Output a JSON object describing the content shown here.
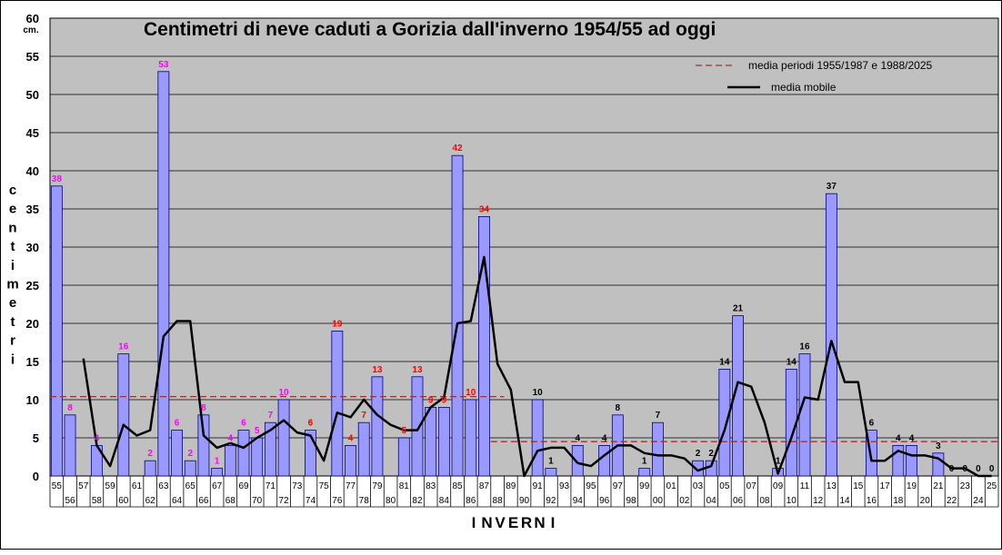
{
  "chart_data": {
    "type": "bar",
    "title": "Centimetri di neve caduti a Gorizia dall'inverno 1954/55 ad oggi",
    "ylabel": "centimetri",
    "y_unit": "cm.",
    "xlabel": "INVERNI",
    "ylim": [
      0,
      60
    ],
    "yticks": [
      0,
      5,
      10,
      15,
      20,
      25,
      30,
      35,
      40,
      45,
      50,
      55,
      60
    ],
    "grid": true,
    "legend_position": "top-right",
    "categories": [
      "55",
      "56",
      "57",
      "58",
      "59",
      "60",
      "61",
      "62",
      "63",
      "64",
      "65",
      "66",
      "67",
      "68",
      "69",
      "70",
      "71",
      "72",
      "73",
      "74",
      "75",
      "76",
      "77",
      "78",
      "79",
      "80",
      "81",
      "82",
      "83",
      "84",
      "85",
      "86",
      "87",
      "88",
      "89",
      "90",
      "91",
      "92",
      "93",
      "94",
      "95",
      "96",
      "97",
      "98",
      "99",
      "00",
      "01",
      "02",
      "03",
      "04",
      "05",
      "06",
      "07",
      "08",
      "09",
      "10",
      "11",
      "12",
      "13",
      "14",
      "15",
      "16",
      "17",
      "18",
      "19",
      "20",
      "21",
      "22",
      "23",
      "24",
      "25"
    ],
    "values": [
      38,
      8,
      0,
      4,
      0,
      16,
      0,
      2,
      53,
      6,
      2,
      8,
      1,
      4,
      6,
      5,
      7,
      10,
      0,
      6,
      0,
      19,
      4,
      7,
      13,
      0,
      5,
      13,
      9,
      9,
      42,
      10,
      34,
      0,
      0,
      0,
      10,
      1,
      0,
      4,
      0,
      4,
      8,
      0,
      1,
      7,
      0,
      0,
      2,
      2,
      14,
      21,
      0,
      0,
      1,
      14,
      16,
      0,
      37,
      0,
      0,
      6,
      0,
      4,
      4,
      0,
      3,
      0,
      0,
      0,
      0
    ],
    "value_labels": [
      "38",
      "8",
      "",
      "4",
      "",
      "16",
      "",
      "2",
      "53",
      "6",
      "2",
      "8",
      "1",
      "4",
      "6",
      "5",
      "7",
      "10",
      "",
      "6",
      "",
      "19",
      "4",
      "7",
      "13",
      "",
      "5",
      "13",
      "9",
      "9",
      "42",
      "10",
      "34",
      "",
      "",
      "",
      "10",
      "1",
      "",
      "4",
      "",
      "4",
      "8",
      "",
      "1",
      "7",
      "",
      "",
      "2",
      "2",
      "14",
      "21",
      "",
      "",
      "1",
      "14",
      "16",
      "",
      "37",
      "",
      "",
      "6",
      "",
      "4",
      "4",
      "",
      "3",
      "0",
      "0",
      "0",
      "0"
    ],
    "value_label_colors": [
      "#ff00ff",
      "#ff00ff",
      "",
      "#ff00ff",
      "",
      "#ff00ff",
      "",
      "#ff00ff",
      "#ff00ff",
      "#ff00ff",
      "#ff00ff",
      "#ff00ff",
      "#ff00ff",
      "#ff00ff",
      "#ff00ff",
      "#ff00ff",
      "#ff00ff",
      "#ff00ff",
      "",
      "#ff0000",
      "",
      "#ff0000",
      "#ff0000",
      "#ff0000",
      "#ff0000",
      "",
      "#ff0000",
      "#ff0000",
      "#ff0000",
      "#ff0000",
      "#ff0000",
      "#ff0000",
      "#ff0000",
      "",
      "",
      "",
      "#000000",
      "#000000",
      "",
      "#000000",
      "",
      "#000000",
      "#000000",
      "",
      "#000000",
      "#000000",
      "",
      "",
      "#000000",
      "#000000",
      "#000000",
      "#000000",
      "",
      "",
      "#000000",
      "#000000",
      "#000000",
      "",
      "#000000",
      "",
      "",
      "#000000",
      "",
      "#000000",
      "#000000",
      "",
      "#000000",
      "#000000",
      "#000000",
      "#000000",
      "#000000"
    ],
    "moving_average": [
      null,
      null,
      15.4,
      4.0,
      1.3,
      6.7,
      5.3,
      6.0,
      18.3,
      20.3,
      20.3,
      5.3,
      3.7,
      4.3,
      3.7,
      5.0,
      6.0,
      7.3,
      5.7,
      5.3,
      2.0,
      8.3,
      7.7,
      10.0,
      8.0,
      6.7,
      6.0,
      6.0,
      9.0,
      10.3,
      20.0,
      20.3,
      28.7,
      14.7,
      11.3,
      0.0,
      3.3,
      3.7,
      3.7,
      1.7,
      1.3,
      2.7,
      4.0,
      4.0,
      3.0,
      2.7,
      2.7,
      2.3,
      0.7,
      1.3,
      6.0,
      12.3,
      11.7,
      7.0,
      0.3,
      5.0,
      10.3,
      10.0,
      17.7,
      12.3,
      12.3,
      2.0,
      2.0,
      3.3,
      2.7,
      2.7,
      2.3,
      1.0,
      1.0,
      0.0,
      0.0
    ],
    "mean_periods": [
      {
        "from_index": 0,
        "to_index": 33,
        "value": 10.4
      },
      {
        "from_index": 33,
        "to_index": 70,
        "value": 4.5
      }
    ],
    "legend": [
      {
        "kind": "dashed",
        "label": "media periodi  1955/1987  e  1988/2025"
      },
      {
        "kind": "solid",
        "label": "media mobile"
      }
    ],
    "colors": {
      "bar_fill": "#9999ff",
      "bar_stroke": "#000080",
      "plot_bg": "#c0c0c0",
      "moving_average": "#000000",
      "mean_line": "#993333"
    }
  }
}
